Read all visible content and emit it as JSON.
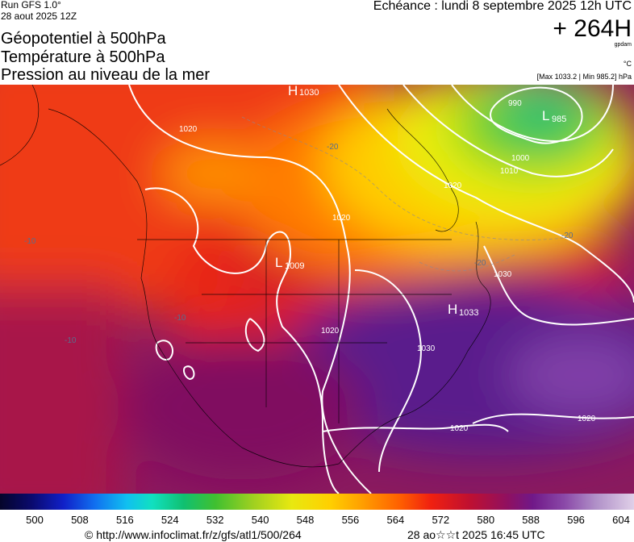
{
  "header": {
    "run": "Run GFS 1.0°",
    "date": "28 aout 2025 12Z",
    "titles": [
      "Géopotentiel à 500hPa",
      "Température à 500hPa",
      "Pression au niveau de la mer"
    ],
    "forecast": "Echéance : lundi 8 septembre 2025 12h UTC",
    "lead": "+ 264H",
    "unit_geo": "gpdam",
    "unit_temp": "°C",
    "extremes": "[Max 1033.2 | Min 985.2] hPa"
  },
  "map": {
    "pressure_centers": [
      {
        "type": "H",
        "value": "1030"
      },
      {
        "type": "L",
        "value": "985"
      },
      {
        "type": "L",
        "value": "1009"
      },
      {
        "type": "H",
        "value": "1033"
      }
    ],
    "isobar_labels": [
      "990",
      "1000",
      "1010",
      "1020",
      "1020",
      "1020",
      "1020",
      "1030",
      "1020",
      "1020",
      "1030"
    ],
    "isotherm_labels": [
      "-20",
      "-20",
      "-20",
      "-10",
      "-10",
      "-10"
    ]
  },
  "colorbar": {
    "labels": [
      500,
      508,
      516,
      524,
      532,
      540,
      548,
      556,
      564,
      572,
      580,
      588,
      596,
      604
    ]
  },
  "footer": {
    "url": "© http://www.infoclimat.fr/z/gfs/atl1/500/264",
    "timestamp": "28 ao☆☆t 2025 16:45 UTC"
  }
}
